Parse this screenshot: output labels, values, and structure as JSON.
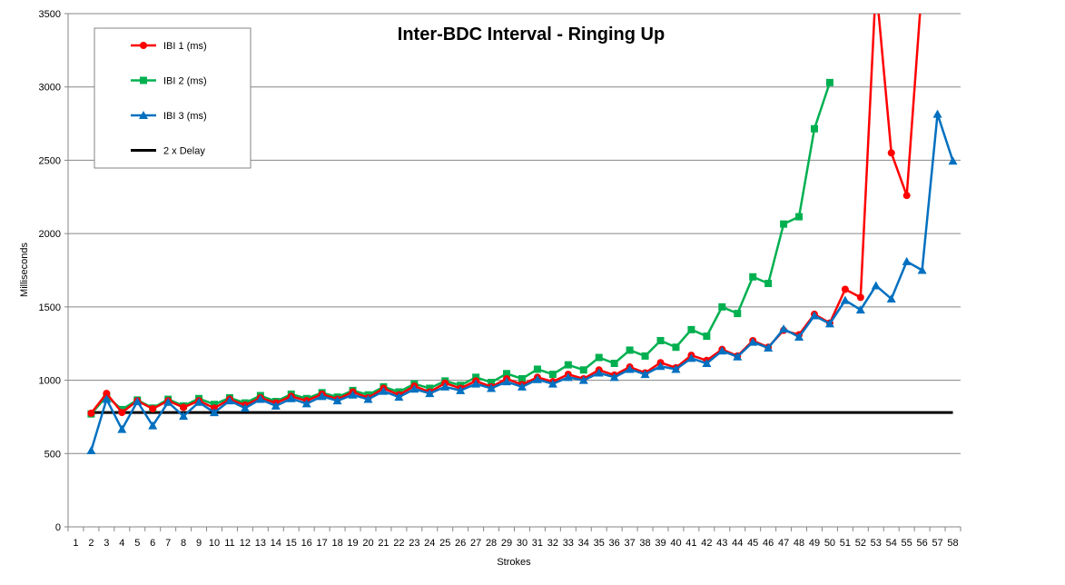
{
  "chart_data": {
    "type": "line",
    "title": "Inter-BDC Interval - Ringing Up",
    "xlabel": "Strokes",
    "ylabel": "Milliseconds",
    "x_categories": [
      "1",
      "2",
      "3",
      "4",
      "5",
      "6",
      "7",
      "8",
      "9",
      "10",
      "11",
      "12",
      "13",
      "14",
      "15",
      "16",
      "17",
      "18",
      "19",
      "20",
      "21",
      "22",
      "23",
      "24",
      "25",
      "26",
      "27",
      "28",
      "29",
      "30",
      "31",
      "32",
      "33",
      "34",
      "35",
      "36",
      "37",
      "38",
      "39",
      "40",
      "41",
      "42",
      "43",
      "44",
      "45",
      "46",
      "47",
      "48",
      "49",
      "50",
      "51",
      "52",
      "53",
      "54",
      "55",
      "56",
      "57",
      "58"
    ],
    "ylim": [
      0,
      3500
    ],
    "y_ticks": [
      0,
      500,
      1000,
      1500,
      2000,
      2500,
      3000,
      3500
    ],
    "grid": "horizontal",
    "legend_position": "top-left",
    "series": [
      {
        "name": "IBI 1 (ms)",
        "color": "#ff0000",
        "marker": "circle",
        "x": [
          2,
          3,
          4,
          5,
          6,
          7,
          8,
          9,
          10,
          11,
          12,
          13,
          14,
          15,
          16,
          17,
          18,
          19,
          20,
          21,
          22,
          23,
          24,
          25,
          26,
          27,
          28,
          29,
          30,
          31,
          32,
          33,
          34,
          35,
          36,
          37,
          38,
          39,
          40,
          41,
          42,
          43,
          44,
          45,
          46,
          47,
          48,
          49,
          50,
          51,
          52,
          53,
          54,
          55,
          56
        ],
        "values": [
          775,
          910,
          780,
          860,
          805,
          860,
          815,
          860,
          810,
          870,
          830,
          880,
          845,
          890,
          860,
          905,
          870,
          920,
          880,
          945,
          900,
          960,
          920,
          980,
          945,
          995,
          955,
          1010,
          970,
          1020,
          990,
          1040,
          1010,
          1070,
          1035,
          1090,
          1050,
          1120,
          1085,
          1170,
          1135,
          1210,
          1165,
          1270,
          1225,
          1340,
          1310,
          1450,
          1390,
          1620,
          1565,
          3700,
          2550,
          2260,
          3700
        ]
      },
      {
        "name": "IBI 2 (ms)",
        "color": "#00b050",
        "marker": "square",
        "x": [
          2,
          3,
          4,
          5,
          6,
          7,
          8,
          9,
          10,
          11,
          12,
          13,
          14,
          15,
          16,
          17,
          18,
          19,
          20,
          21,
          22,
          23,
          24,
          25,
          26,
          27,
          28,
          29,
          30,
          31,
          32,
          33,
          34,
          35,
          36,
          37,
          38,
          39,
          40,
          41,
          42,
          43,
          44,
          45,
          46,
          47,
          48,
          49,
          50
        ],
        "values": [
          770,
          890,
          800,
          865,
          810,
          870,
          825,
          875,
          835,
          880,
          845,
          895,
          855,
          905,
          875,
          915,
          885,
          930,
          900,
          955,
          920,
          975,
          945,
          995,
          965,
          1020,
          985,
          1045,
          1010,
          1075,
          1040,
          1105,
          1070,
          1155,
          1115,
          1205,
          1165,
          1270,
          1225,
          1345,
          1300,
          1500,
          1455,
          1705,
          1660,
          2065,
          2115,
          2715,
          3030
        ]
      },
      {
        "name": "IBI 3 (ms)",
        "color": "#0070c0",
        "marker": "triangle",
        "x": [
          2,
          3,
          4,
          5,
          6,
          7,
          8,
          9,
          10,
          11,
          12,
          13,
          14,
          15,
          16,
          17,
          18,
          19,
          20,
          21,
          22,
          23,
          24,
          25,
          26,
          27,
          28,
          29,
          30,
          31,
          32,
          33,
          34,
          35,
          36,
          37,
          38,
          39,
          40,
          41,
          42,
          43,
          44,
          45,
          46,
          47,
          48,
          49,
          50,
          51,
          52,
          53,
          54,
          55,
          56,
          57,
          58
        ],
        "values": [
          520,
          870,
          665,
          855,
          690,
          850,
          755,
          850,
          780,
          860,
          810,
          870,
          825,
          875,
          840,
          890,
          860,
          900,
          870,
          925,
          885,
          940,
          910,
          955,
          930,
          975,
          945,
          990,
          955,
          1005,
          975,
          1020,
          1000,
          1050,
          1020,
          1075,
          1040,
          1095,
          1075,
          1150,
          1115,
          1200,
          1160,
          1260,
          1220,
          1350,
          1295,
          1440,
          1385,
          1545,
          1480,
          1645,
          1555,
          1810,
          1750,
          2815,
          2495
        ]
      },
      {
        "name": "2 x Delay",
        "color": "#000000",
        "marker": "none",
        "x": [
          2,
          58
        ],
        "values": [
          780,
          780
        ]
      }
    ]
  }
}
